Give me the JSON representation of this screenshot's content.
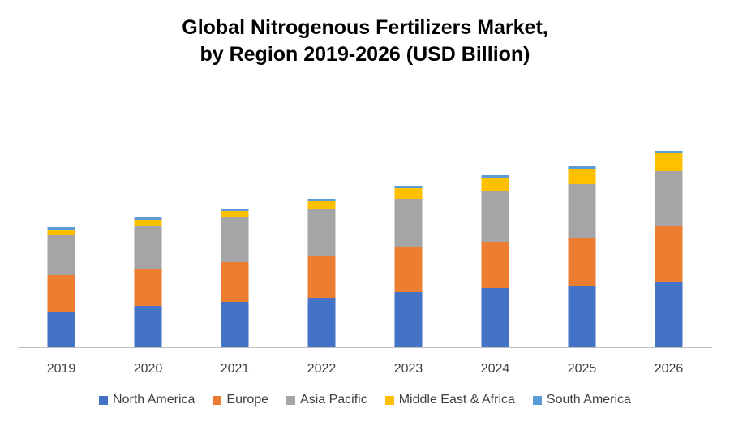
{
  "chart_data": {
    "type": "bar",
    "stacked": true,
    "title_line1": "Global Nitrogenous Fertilizers Market,",
    "title_line2": "by Region 2019-2026 (USD Billion)",
    "categories": [
      "2019",
      "2020",
      "2021",
      "2022",
      "2023",
      "2024",
      "2025",
      "2026"
    ],
    "series": [
      {
        "name": "North America",
        "color": "#4472C4",
        "values": [
          44,
          51,
          56,
          61,
          68,
          73,
          75,
          80
        ]
      },
      {
        "name": "Europe",
        "color": "#ED7D31",
        "values": [
          45,
          46,
          49,
          52,
          55,
          57,
          60,
          69
        ]
      },
      {
        "name": "Asia Pacific",
        "color": "#A5A5A5",
        "values": [
          50,
          53,
          56,
          58,
          60,
          63,
          66,
          68
        ]
      },
      {
        "name": "Middle East & Africa",
        "color": "#FFC000",
        "values": [
          6,
          7,
          7,
          9,
          13,
          16,
          19,
          22
        ]
      },
      {
        "name": "South America",
        "color": "#5B9BD5",
        "values": [
          3,
          3,
          3,
          3,
          3,
          3,
          3,
          3
        ]
      }
    ],
    "ylim": [
      0,
      260
    ],
    "xlabel": "",
    "ylabel": "",
    "legend_position": "bottom",
    "grid": false
  }
}
